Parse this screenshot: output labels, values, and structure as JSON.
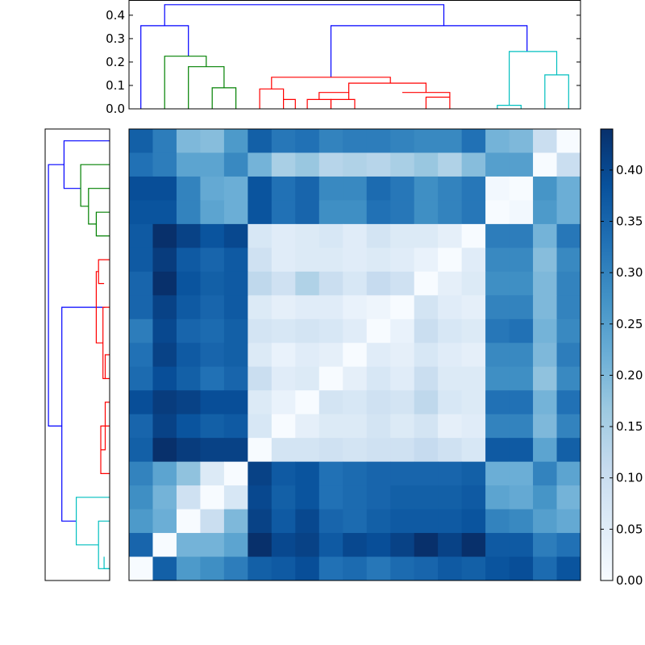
{
  "chart_data": [
    {
      "type": "dendrogram",
      "orientation": "top",
      "yticks": [
        "0.0",
        "0.1",
        "0.2",
        "0.3",
        "0.4"
      ],
      "ylim": [
        0,
        0.465
      ],
      "leaf_count": 19,
      "clusters": [
        {
          "color": "#0000ff",
          "links": [
            [
              [
                0.5,
                0
              ],
              [
                0.5,
                0.355
              ],
              [
                2.5,
                0.355
              ],
              [
                2.5,
                0.225
              ]
            ],
            [
              [
                1.5,
                0.355
              ],
              [
                1.5,
                0.445
              ],
              [
                13.25,
                0.445
              ],
              [
                13.25,
                0.355
              ]
            ],
            [
              [
                8.5,
                0.135
              ],
              [
                8.5,
                0.355
              ],
              [
                16.75,
                0.355
              ],
              [
                16.75,
                0.245
              ]
            ]
          ]
        },
        {
          "color": "#008000",
          "links": [
            [
              [
                1.5,
                0
              ],
              [
                1.5,
                0.225
              ],
              [
                3.25,
                0.225
              ],
              [
                3.25,
                0.18
              ]
            ],
            [
              [
                2.5,
                0
              ],
              [
                2.5,
                0.18
              ],
              [
                4,
                0.18
              ],
              [
                4,
                0.09
              ]
            ],
            [
              [
                3.5,
                0
              ],
              [
                3.5,
                0.09
              ],
              [
                4.5,
                0.09
              ],
              [
                4.5,
                0
              ]
            ]
          ]
        },
        {
          "color": "#ff0000",
          "links": [
            [
              [
                5.5,
                0
              ],
              [
                5.5,
                0.085
              ],
              [
                6.5,
                0.085
              ],
              [
                6.5,
                0.04
              ]
            ],
            [
              [
                6,
                0.085
              ],
              [
                6,
                0.135
              ],
              [
                11,
                0.135
              ],
              [
                11,
                0.11
              ]
            ],
            [
              [
                6.5,
                0
              ],
              [
                6.5,
                0.04
              ],
              [
                7,
                0.04
              ],
              [
                7,
                0
              ]
            ],
            [
              [
                7.5,
                0
              ],
              [
                7.5,
                0.04
              ],
              [
                8.5,
                0.04
              ],
              [
                8.5,
                0
              ]
            ],
            [
              [
                8,
                0.04
              ],
              [
                8,
                0.07
              ],
              [
                9.25,
                0.07
              ],
              [
                9.25,
                0.04
              ]
            ],
            [
              [
                8.5,
                0
              ],
              [
                8.5,
                0.04
              ],
              [
                9.5,
                0.04
              ],
              [
                9.5,
                0
              ]
            ],
            [
              [
                9.25,
                0.07
              ],
              [
                9.25,
                0.11
              ],
              [
                12.5,
                0.11
              ],
              [
                12.5,
                0.07
              ]
            ],
            [
              [
                11.5,
                0.07
              ],
              [
                11.5,
                0.07
              ],
              [
                13.5,
                0.07
              ],
              [
                13.5,
                0.05
              ]
            ],
            [
              [
                12.5,
                0
              ],
              [
                12.5,
                0.05
              ],
              [
                13.5,
                0.05
              ],
              [
                13.5,
                0
              ]
            ]
          ]
        },
        {
          "color": "#00bfbf",
          "links": [
            [
              [
                15.5,
                0
              ],
              [
                15.5,
                0.015
              ],
              [
                16.5,
                0.015
              ],
              [
                16.5,
                0
              ]
            ],
            [
              [
                16,
                0.015
              ],
              [
                16,
                0.245
              ],
              [
                18,
                0.245
              ],
              [
                18,
                0.145
              ]
            ],
            [
              [
                17.5,
                0
              ],
              [
                17.5,
                0.145
              ],
              [
                18.5,
                0.145
              ],
              [
                18.5,
                0
              ]
            ]
          ]
        }
      ]
    },
    {
      "type": "dendrogram",
      "orientation": "left",
      "leaf_count": 19,
      "clusters": [
        {
          "color": "#0000ff",
          "links": [
            [
              [
                0.5,
                0
              ],
              [
                0.5,
                0.41
              ],
              [
                2.5,
                0.41
              ],
              [
                2.5,
                0.26
              ]
            ],
            [
              [
                1.5,
                0.41
              ],
              [
                1.5,
                0.55
              ],
              [
                12.5,
                0.55
              ],
              [
                12.5,
                0.43
              ]
            ],
            [
              [
                7.5,
                0.04
              ],
              [
                7.5,
                0.43
              ],
              [
                16.5,
                0.43
              ],
              [
                16.5,
                0.3
              ]
            ]
          ]
        },
        {
          "color": "#008000",
          "links": [
            [
              [
                1.5,
                0
              ],
              [
                1.5,
                0.26
              ],
              [
                3.25,
                0.26
              ],
              [
                3.25,
                0.19
              ]
            ],
            [
              [
                2.5,
                0
              ],
              [
                2.5,
                0.19
              ],
              [
                4,
                0.19
              ],
              [
                4,
                0.12
              ]
            ],
            [
              [
                3.5,
                0
              ],
              [
                3.5,
                0.12
              ],
              [
                4.5,
                0.12
              ],
              [
                4.5,
                0
              ]
            ]
          ]
        },
        {
          "color": "#ff0000",
          "links": [
            [
              [
                5.5,
                0
              ],
              [
                5.5,
                0.1
              ],
              [
                6.5,
                0.1
              ],
              [
                6.5,
                0.05
              ]
            ],
            [
              [
                6,
                0.1
              ],
              [
                6,
                0.12
              ],
              [
                9,
                0.12
              ],
              [
                9,
                0.06
              ]
            ],
            [
              [
                7.5,
                0
              ],
              [
                7.5,
                0.06
              ],
              [
                10.5,
                0.06
              ],
              [
                10.5,
                0.04
              ]
            ],
            [
              [
                9.5,
                0
              ],
              [
                9.5,
                0.04
              ],
              [
                10.5,
                0.04
              ],
              [
                10.5,
                0
              ]
            ],
            [
              [
                11.5,
                0
              ],
              [
                11.5,
                0.04
              ],
              [
                13.5,
                0.04
              ],
              [
                13.5,
                0.08
              ]
            ],
            [
              [
                12.5,
                0
              ],
              [
                12.5,
                0.08
              ],
              [
                14.5,
                0.08
              ],
              [
                14.5,
                0
              ]
            ]
          ]
        },
        {
          "color": "#00bfbf",
          "links": [
            [
              [
                15.5,
                0
              ],
              [
                15.5,
                0.3
              ],
              [
                17.5,
                0.3
              ],
              [
                17.5,
                0.1
              ]
            ],
            [
              [
                16.5,
                0
              ],
              [
                16.5,
                0.1
              ],
              [
                18.5,
                0.1
              ],
              [
                18.5,
                0
              ]
            ],
            [
              [
                18,
                0.05
              ],
              [
                18,
                0.05
              ],
              [
                18.5,
                0.05
              ],
              [
                18.5,
                0
              ]
            ]
          ]
        }
      ]
    },
    {
      "type": "heatmap",
      "rows": 19,
      "cols": 19,
      "colormap": "Blues",
      "colors": {
        "low": "#f7fbff",
        "high": "#08306b"
      },
      "colorbar": {
        "ticks": [
          "0.00",
          "0.05",
          "0.10",
          "0.15",
          "0.20",
          "0.25",
          "0.30",
          "0.35",
          "0.40"
        ],
        "vmin": 0,
        "vmax": 0.44
      },
      "values": [
        [
          0.36,
          0.31,
          0.2,
          0.19,
          0.26,
          0.36,
          0.32,
          0.33,
          0.3,
          0.31,
          0.31,
          0.3,
          0.29,
          0.29,
          0.33,
          0.21,
          0.2,
          0.1,
          0.0
        ],
        [
          0.33,
          0.31,
          0.24,
          0.24,
          0.29,
          0.21,
          0.15,
          0.17,
          0.13,
          0.14,
          0.13,
          0.15,
          0.17,
          0.14,
          0.19,
          0.25,
          0.25,
          0.0,
          0.1
        ],
        [
          0.39,
          0.39,
          0.3,
          0.23,
          0.22,
          0.38,
          0.33,
          0.35,
          0.29,
          0.29,
          0.34,
          0.32,
          0.28,
          0.3,
          0.32,
          0.01,
          0.0,
          0.27,
          0.22
        ],
        [
          0.38,
          0.38,
          0.3,
          0.24,
          0.22,
          0.38,
          0.33,
          0.35,
          0.28,
          0.28,
          0.33,
          0.32,
          0.28,
          0.3,
          0.32,
          0.0,
          0.01,
          0.26,
          0.22
        ],
        [
          0.37,
          0.44,
          0.41,
          0.38,
          0.4,
          0.07,
          0.05,
          0.06,
          0.07,
          0.05,
          0.08,
          0.06,
          0.06,
          0.04,
          0.0,
          0.31,
          0.31,
          0.21,
          0.32
        ],
        [
          0.37,
          0.42,
          0.37,
          0.35,
          0.37,
          0.09,
          0.05,
          0.06,
          0.06,
          0.05,
          0.06,
          0.05,
          0.03,
          0.0,
          0.05,
          0.29,
          0.29,
          0.19,
          0.29
        ],
        [
          0.35,
          0.44,
          0.38,
          0.36,
          0.37,
          0.12,
          0.09,
          0.14,
          0.1,
          0.07,
          0.11,
          0.09,
          0.0,
          0.04,
          0.06,
          0.28,
          0.28,
          0.2,
          0.3
        ],
        [
          0.35,
          0.41,
          0.37,
          0.35,
          0.37,
          0.06,
          0.04,
          0.05,
          0.05,
          0.03,
          0.02,
          0.0,
          0.08,
          0.05,
          0.04,
          0.3,
          0.3,
          0.2,
          0.3
        ],
        [
          0.31,
          0.4,
          0.35,
          0.34,
          0.36,
          0.08,
          0.07,
          0.08,
          0.07,
          0.05,
          0.0,
          0.03,
          0.1,
          0.07,
          0.06,
          0.32,
          0.33,
          0.21,
          0.29
        ],
        [
          0.33,
          0.41,
          0.37,
          0.35,
          0.36,
          0.06,
          0.03,
          0.05,
          0.04,
          0.0,
          0.05,
          0.04,
          0.07,
          0.05,
          0.04,
          0.29,
          0.29,
          0.2,
          0.31
        ],
        [
          0.34,
          0.39,
          0.36,
          0.33,
          0.35,
          0.1,
          0.05,
          0.06,
          0.0,
          0.04,
          0.07,
          0.05,
          0.1,
          0.06,
          0.06,
          0.28,
          0.28,
          0.18,
          0.29
        ],
        [
          0.39,
          0.42,
          0.41,
          0.39,
          0.39,
          0.06,
          0.03,
          0.0,
          0.08,
          0.07,
          0.09,
          0.08,
          0.12,
          0.07,
          0.06,
          0.33,
          0.33,
          0.21,
          0.33
        ],
        [
          0.35,
          0.41,
          0.38,
          0.36,
          0.37,
          0.07,
          0.0,
          0.04,
          0.06,
          0.06,
          0.08,
          0.06,
          0.08,
          0.04,
          0.05,
          0.3,
          0.3,
          0.2,
          0.3
        ],
        [
          0.36,
          0.44,
          0.42,
          0.41,
          0.41,
          0.0,
          0.08,
          0.08,
          0.09,
          0.08,
          0.09,
          0.09,
          0.11,
          0.09,
          0.07,
          0.37,
          0.37,
          0.24,
          0.36
        ],
        [
          0.3,
          0.24,
          0.18,
          0.06,
          0.0,
          0.41,
          0.37,
          0.38,
          0.33,
          0.34,
          0.35,
          0.35,
          0.35,
          0.35,
          0.36,
          0.22,
          0.22,
          0.3,
          0.24
        ],
        [
          0.28,
          0.21,
          0.09,
          0.0,
          0.07,
          0.4,
          0.36,
          0.38,
          0.33,
          0.34,
          0.35,
          0.36,
          0.36,
          0.36,
          0.37,
          0.24,
          0.23,
          0.27,
          0.21
        ],
        [
          0.26,
          0.22,
          0.0,
          0.1,
          0.2,
          0.41,
          0.37,
          0.4,
          0.35,
          0.34,
          0.36,
          0.37,
          0.37,
          0.37,
          0.38,
          0.3,
          0.29,
          0.25,
          0.23
        ],
        [
          0.35,
          0.0,
          0.21,
          0.21,
          0.24,
          0.44,
          0.4,
          0.41,
          0.37,
          0.4,
          0.39,
          0.41,
          0.44,
          0.41,
          0.44,
          0.37,
          0.37,
          0.31,
          0.33
        ],
        [
          0.0,
          0.36,
          0.26,
          0.28,
          0.31,
          0.36,
          0.37,
          0.39,
          0.33,
          0.34,
          0.32,
          0.34,
          0.35,
          0.37,
          0.36,
          0.38,
          0.39,
          0.34,
          0.38
        ]
      ]
    }
  ]
}
